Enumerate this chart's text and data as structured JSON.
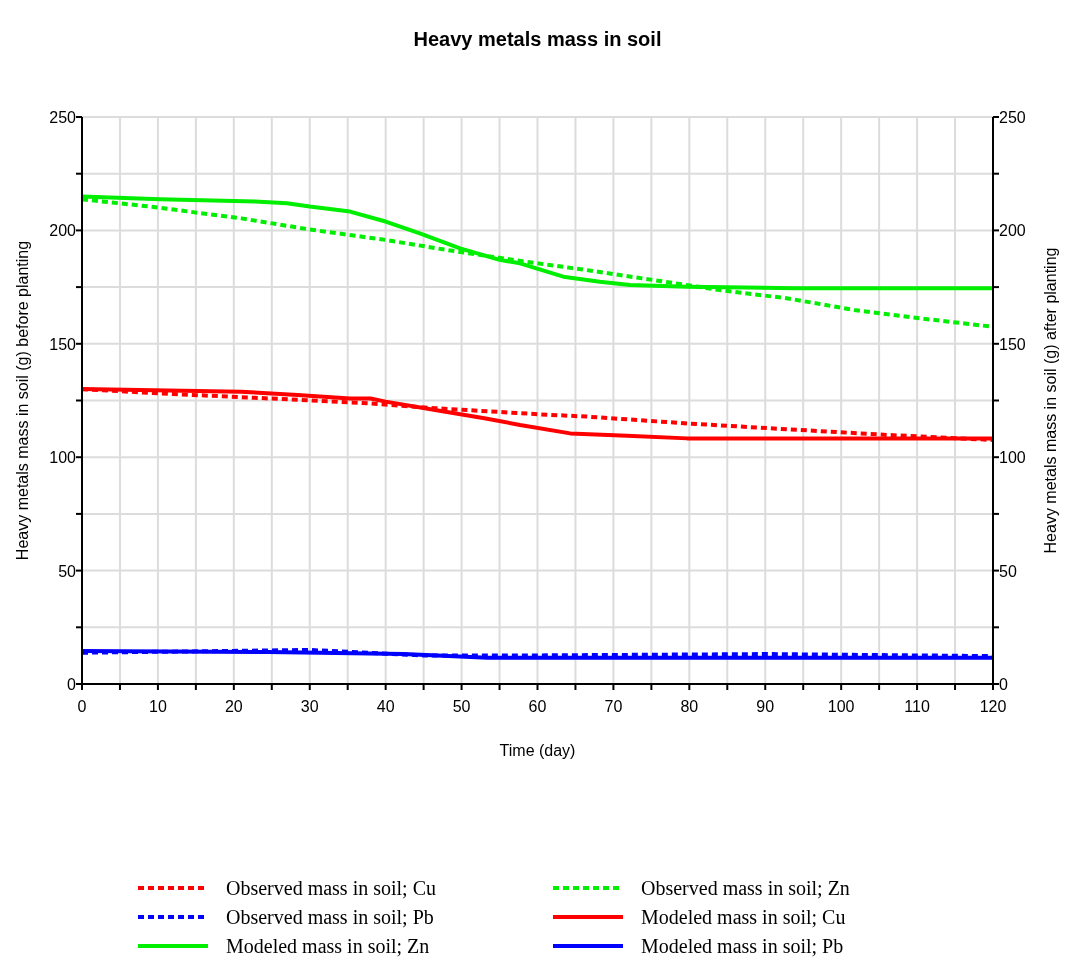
{
  "chart_data": {
    "type": "line",
    "title": "Heavy metals mass in soil",
    "xlabel": "Time (day)",
    "ylabel": "Heavy metals mass in soil (g) before planting",
    "y2label": "Heavy metals mass in soil (g) after planting",
    "xlim": [
      0,
      120
    ],
    "xticks": [
      0,
      {
        "value": 5,
        "label": null
      },
      10,
      {
        "value": 15,
        "label": null
      },
      20,
      {
        "value": 25,
        "label": null
      },
      30,
      {
        "value": 35,
        "label": null
      },
      40,
      {
        "value": 45,
        "label": null
      },
      50,
      {
        "value": 55,
        "label": null
      },
      60,
      {
        "value": 65,
        "label": null
      },
      70,
      {
        "value": 75,
        "label": null
      },
      80,
      {
        "value": 85,
        "label": null
      },
      90,
      {
        "value": 95,
        "label": null
      },
      100,
      {
        "value": 105,
        "label": null
      },
      110,
      {
        "value": 115,
        "label": null
      },
      120
    ],
    "ylim": [
      0,
      250
    ],
    "yticks": [
      0,
      {
        "value": 25,
        "label": null
      },
      50,
      {
        "value": 75,
        "label": null
      },
      100,
      {
        "value": 125,
        "label": null
      },
      150,
      {
        "value": 175,
        "label": null
      },
      200,
      {
        "value": 225,
        "label": null
      },
      250
    ],
    "y2lim": [
      0,
      250
    ],
    "y2ticks": [
      0,
      {
        "value": 25,
        "label": null
      },
      50,
      {
        "value": 75,
        "label": null
      },
      100,
      {
        "value": 125,
        "label": null
      },
      150,
      {
        "value": 175,
        "label": null
      },
      200,
      {
        "value": 225,
        "label": null
      },
      250
    ],
    "grid": true,
    "legend": "bottom",
    "series": [
      {
        "name": "Observed mass in soil; Cu",
        "color": "#ff0000",
        "line_style": "dotted",
        "x": [
          0,
          11.6,
          24.7,
          38,
          46.5,
          60.3,
          66.5,
          79.7,
          93,
          106.2,
          120
        ],
        "values": [
          130,
          127.9,
          125.9,
          123.7,
          121.6,
          118.9,
          117.9,
          114.9,
          112.3,
          109.8,
          107.6
        ]
      },
      {
        "name": "Observed mass in soil; Zn",
        "color": "#00ee00",
        "line_style": "dotted",
        "x": [
          0,
          9,
          21,
          30,
          40,
          48,
          58,
          66.5,
          75.3,
          84,
          93,
          101.7,
          110.5,
          120
        ],
        "values": [
          213.7,
          210.5,
          205.3,
          200.4,
          195.8,
          191.4,
          186.4,
          182.5,
          178.1,
          173.7,
          170,
          164.9,
          161.2,
          157.5
        ]
      },
      {
        "name": "Observed mass in soil; Pb",
        "color": "#0000ff",
        "line_style": "dotted",
        "x": [
          0,
          30,
          45,
          60,
          90,
          120
        ],
        "values": [
          13.8,
          15,
          12.6,
          12.6,
          13.2,
          12.3
        ]
      },
      {
        "name": "Modeled mass in soil; Cu",
        "color": "#ff0000",
        "line_style": "solid",
        "x": [
          0,
          20.9,
          28.4,
          35.3,
          38,
          40,
          46.5,
          53,
          57.7,
          64.3,
          71.8,
          79.7,
          120
        ],
        "values": [
          130.1,
          128.9,
          127.4,
          125.9,
          125.9,
          124.5,
          120.8,
          117.2,
          114.2,
          110.5,
          109.5,
          108.3,
          108.3
        ]
      },
      {
        "name": "Modeled mass in soil; Zn",
        "color": "#00ee00",
        "line_style": "solid",
        "x": [
          0,
          10.3,
          22.8,
          27,
          30,
          35.3,
          40.1,
          44.5,
          49.8,
          55,
          57.7,
          63.4,
          68.2,
          72.2,
          79.7,
          94,
          120
        ],
        "values": [
          214.9,
          213.7,
          212.7,
          212,
          210.5,
          208.3,
          203.8,
          198.7,
          192.1,
          187,
          185.5,
          179.6,
          177.4,
          175.9,
          175.2,
          174.5,
          174.5
        ]
      },
      {
        "name": "Modeled mass in soil; Pb",
        "color": "#0000ff",
        "line_style": "solid",
        "x": [
          0,
          24.5,
          42.4,
          53.4,
          120
        ],
        "values": [
          14.5,
          14.1,
          13.2,
          11.6,
          11.6
        ]
      }
    ]
  }
}
